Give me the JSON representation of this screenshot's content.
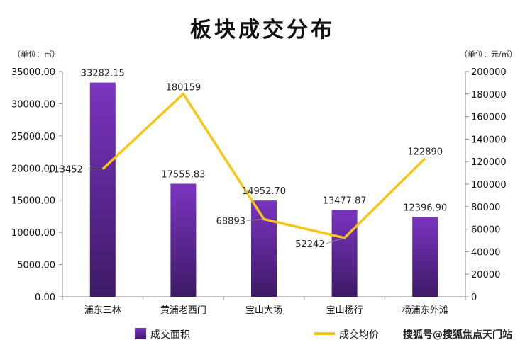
{
  "chart_data": {
    "type": "bar+line",
    "title": "板块成交分布",
    "categories": [
      "浦东三林",
      "黄浦老西门",
      "宝山大场",
      "宝山杨行",
      "杨浦东外滩"
    ],
    "series": [
      {
        "name": "成交面积",
        "type": "bar",
        "axis": "left",
        "values": [
          33282.15,
          17555.83,
          14952.7,
          13477.87,
          12396.9
        ],
        "value_labels": [
          "33282.15",
          "17555.83",
          "14952.70",
          "13477.87",
          "12396.90"
        ]
      },
      {
        "name": "成交均价",
        "type": "line",
        "axis": "right",
        "values": [
          113452,
          180159,
          68893,
          52242,
          122890
        ],
        "value_labels": [
          "113452",
          "180159",
          "68893",
          "52242",
          "122890"
        ]
      }
    ],
    "y_left": {
      "unit_label": "（单位：㎡）",
      "ylim": [
        0,
        35000
      ],
      "ticks": [
        "0.00",
        "5000.00",
        "10000.00",
        "15000.00",
        "20000.00",
        "25000.00",
        "30000.00",
        "35000.00"
      ]
    },
    "y_right": {
      "unit_label": "（单位：元/㎡）",
      "ylim": [
        0,
        200000
      ],
      "ticks": [
        "0",
        "20000",
        "40000",
        "60000",
        "80000",
        "100000",
        "120000",
        "140000",
        "160000",
        "180000",
        "200000"
      ]
    },
    "legend_position": "bottom",
    "colors": {
      "bar_top": "#7b34c0",
      "bar_bottom": "#3d1a66",
      "line": "#f7c518",
      "axis": "#888888"
    }
  },
  "watermark": "搜狐号@搜狐焦点天门站"
}
